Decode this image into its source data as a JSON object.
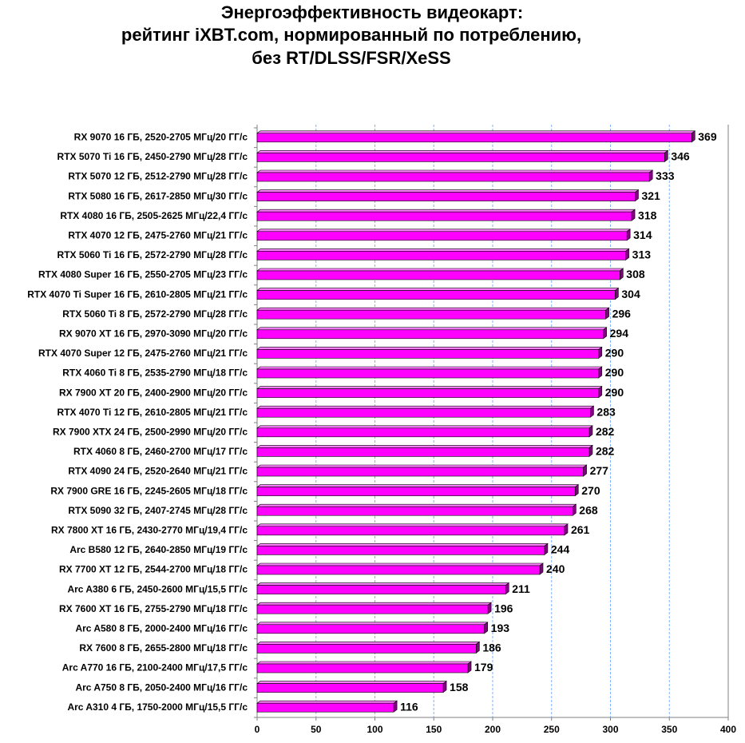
{
  "chart_data": {
    "type": "bar",
    "orientation": "horizontal",
    "title": [
      "Энергоэффективность видеокарт:",
      "рейтинг iXBT.com, нормированный по потреблению,",
      "без RT/DLSS/FSR/XeSS"
    ],
    "categories": [
      "RX 9070 16 ГБ, 2520-2705 МГц/20 ГГ/с",
      "RTX 5070 Ti 16 ГБ, 2450-2790 МГц/28 ГГ/с",
      "RTX 5070 12 ГБ, 2512-2790 МГц/28 ГГ/с",
      "RTX 5080 16 ГБ, 2617-2850 МГц/30 ГГ/с",
      "RTX 4080 16 ГБ, 2505-2625 МГц/22,4 ГГ/с",
      "RTX 4070 12 ГБ, 2475-2760 МГц/21 ГГ/с",
      "RTX 5060 Ti 16 ГБ, 2572-2790 МГц/28 ГГ/с",
      "RTX 4080 Super 16 ГБ, 2550-2705 МГц/23 ГГ/с",
      "RTX 4070 Ti Super 16 ГБ, 2610-2805 МГц/21 ГГ/с",
      "RTX 5060 Ti 8 ГБ, 2572-2790 МГц/28 ГГ/с",
      "RX 9070 XT 16 ГБ, 2970-3090 МГц/20 ГГ/с",
      "RTX 4070 Super 12 ГБ, 2475-2760 МГц/21 ГГ/с",
      "RTX 4060 Ti 8 ГБ, 2535-2790 МГц/18 ГГ/с",
      "RX 7900 XT 20 ГБ, 2400-2900 МГц/20 ГГ/с",
      "RTX 4070 Ti 12 ГБ, 2610-2805 МГц/21 ГГ/с",
      "RX 7900 XTX 24 ГБ, 2500-2990 МГц/20 ГГ/с",
      "RTX 4060 8 ГБ, 2460-2700 МГц/17 ГГ/с",
      "RTX 4090 24 ГБ, 2520-2640 МГц/21 ГГ/с",
      "RX 7900 GRE 16 ГБ, 2245-2605 МГц/18 ГГ/с",
      "RTX 5090 32 ГБ, 2407-2745 МГц/28 ГГ/с",
      "RX 7800 XT 16 ГБ, 2430-2770 МГц/19,4 ГГ/с",
      "Arc B580 12 ГБ, 2640-2850 МГц/19 ГГ/с",
      "RX 7700 XT 12 ГБ, 2544-2700 МГц/18 ГГ/с",
      "Arc A380 6 ГБ, 2450-2600 МГц/15,5 ГГ/с",
      "RX 7600 XT 16 ГБ, 2755-2790 МГц/18 ГГ/с",
      "Arc A580 8 ГБ, 2000-2400 МГц/16 ГГ/с",
      "RX 7600 8 ГБ, 2655-2800 МГц/18 ГГ/с",
      "Arc A770 16 ГБ, 2100-2400 МГц/17,5 ГГ/с",
      "Arc A750 8 ГБ, 2050-2400 МГц/16 ГГ/с",
      "Arc A310 4 ГБ, 1750-2000 МГц/15,5 ГГ/с"
    ],
    "values": [
      369,
      346,
      333,
      321,
      318,
      314,
      313,
      308,
      304,
      296,
      294,
      290,
      290,
      290,
      283,
      282,
      282,
      277,
      270,
      268,
      261,
      244,
      240,
      211,
      196,
      193,
      186,
      179,
      158,
      116
    ],
    "color": "#ff00ff",
    "xlim": [
      0,
      400
    ],
    "xticks": [
      0,
      50,
      100,
      150,
      200,
      250,
      300,
      350,
      400
    ],
    "grid": true
  }
}
